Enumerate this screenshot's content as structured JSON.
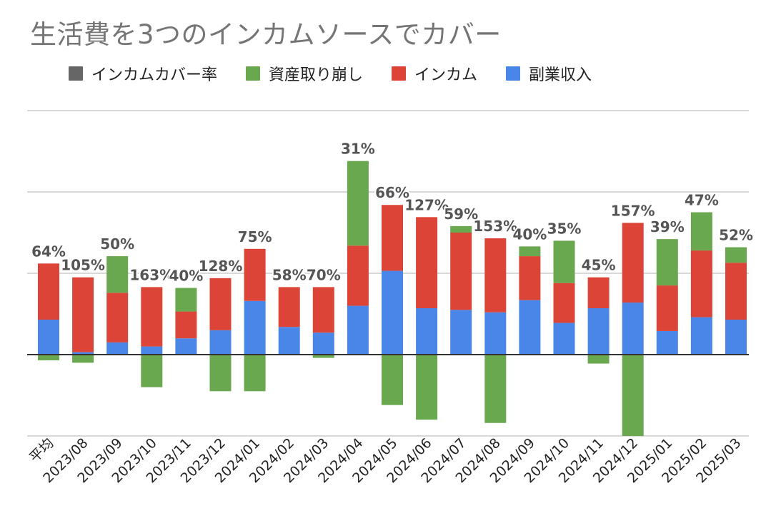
{
  "chart_data": {
    "type": "bar",
    "stacked": true,
    "title": "生活費を3つのインカムソースでカバー",
    "legend_position": "top-left",
    "categories": [
      "平均",
      "2023/08",
      "2023/09",
      "2023/10",
      "2023/11",
      "2023/12",
      "2024/01",
      "2024/02",
      "2024/03",
      "2024/04",
      "2024/05",
      "2024/06",
      "2024/07",
      "2024/08",
      "2024/09",
      "2024/10",
      "2024/11",
      "2024/12",
      "2025/01",
      "2025/02",
      "2025/03"
    ],
    "series": [
      {
        "name": "インカムカバー率",
        "color": "#666666",
        "labels": [
          "64%",
          "105%",
          "50%",
          "163%",
          "40%",
          "128%",
          "75%",
          "58%",
          "70%",
          "31%",
          "66%",
          "127%",
          "59%",
          "153%",
          "40%",
          "35%",
          "45%",
          "157%",
          "39%",
          "47%",
          "52%"
        ]
      },
      {
        "name": "資産取り崩し",
        "color": "#6aa84f",
        "values": [
          -0.07,
          -0.1,
          0.45,
          -0.4,
          0.29,
          -0.45,
          -0.45,
          0,
          -0.04,
          1.04,
          -0.62,
          -0.8,
          0.08,
          -0.84,
          0.12,
          0.52,
          -0.11,
          -1.0,
          0.57,
          0.47,
          0.19
        ]
      },
      {
        "name": "インカム",
        "color": "#db4437",
        "values": [
          0.69,
          0.92,
          0.61,
          0.73,
          0.33,
          0.64,
          0.64,
          0.49,
          0.56,
          0.74,
          0.81,
          1.12,
          0.95,
          0.91,
          0.54,
          0.49,
          0.38,
          0.98,
          0.56,
          0.82,
          0.7
        ]
      },
      {
        "name": "副業収入",
        "color": "#4a86e8",
        "values": [
          0.43,
          0.03,
          0.15,
          0.1,
          0.2,
          0.3,
          0.66,
          0.34,
          0.27,
          0.6,
          1.03,
          0.57,
          0.55,
          0.52,
          0.67,
          0.39,
          0.57,
          0.64,
          0.29,
          0.46,
          0.43
        ]
      }
    ],
    "ylim": [
      -1.0,
      3.0
    ],
    "gridlines": [
      -1,
      0,
      1,
      2,
      3
    ],
    "grid": true,
    "y_tick_labels_shown": false
  }
}
